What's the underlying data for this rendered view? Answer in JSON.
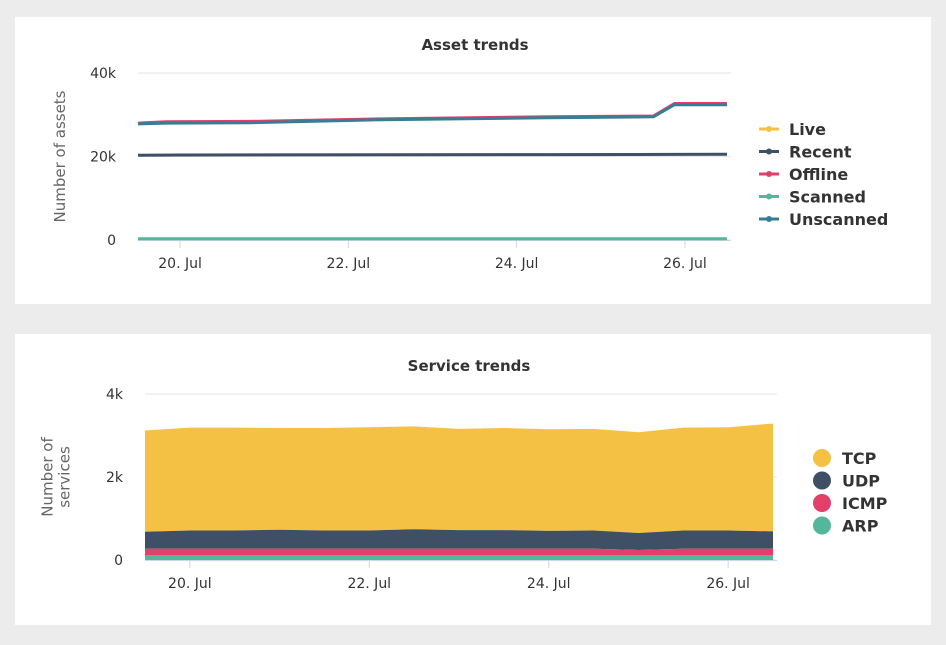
{
  "chart_data": [
    {
      "type": "line",
      "title": "Asset trends",
      "xlabel": "",
      "ylabel": "Number of assets",
      "ylim": [
        0,
        40000
      ],
      "yticks": [
        "0",
        "20k",
        "40k"
      ],
      "ytick_values": [
        0,
        20000,
        40000
      ],
      "xlim": [
        "2023-07-19T12:00",
        "2023-07-26T12:00"
      ],
      "xticks": [
        "20. Jul",
        "22. Jul",
        "24. Jul",
        "26. Jul"
      ],
      "xtick_dates": [
        "2023-07-20",
        "2023-07-22",
        "2023-07-24",
        "2023-07-26"
      ],
      "grid": "horizontal",
      "legend_position": "right",
      "series": [
        {
          "name": "Live",
          "color": "#f4c145",
          "x": [
            "2023-07-19T12:00",
            "2023-07-26T12:00"
          ],
          "y": [
            null,
            null
          ]
        },
        {
          "name": "Recent",
          "color": "#3f4f65",
          "x": [
            "2023-07-19T12:00",
            "2023-07-20T00:00",
            "2023-07-22T09:00",
            "2023-07-24T09:00",
            "2023-07-25T21:00",
            "2023-07-26T12:00"
          ],
          "y": [
            20300,
            20350,
            20400,
            20450,
            20500,
            20550
          ]
        },
        {
          "name": "Offline",
          "color": "#e23f6b",
          "x": [
            "2023-07-19T12:00",
            "2023-07-19T20:00",
            "2023-07-20T20:00",
            "2023-07-22T09:00",
            "2023-07-24T09:00",
            "2023-07-25T15:00",
            "2023-07-25T21:00",
            "2023-07-26T12:00"
          ],
          "y": [
            28000,
            28300,
            28400,
            29000,
            29500,
            29700,
            32700,
            32700
          ]
        },
        {
          "name": "Scanned",
          "color": "#52b79b",
          "x": [
            "2023-07-19T12:00",
            "2023-07-26T12:00"
          ],
          "y": [
            300,
            300
          ]
        },
        {
          "name": "Unscanned",
          "color": "#377e94",
          "x": [
            "2023-07-19T12:00",
            "2023-07-19T20:00",
            "2023-07-20T20:00",
            "2023-07-22T09:00",
            "2023-07-24T09:00",
            "2023-07-25T15:00",
            "2023-07-25T21:00",
            "2023-07-26T12:00"
          ],
          "y": [
            27800,
            28000,
            28100,
            28800,
            29300,
            29500,
            32400,
            32400
          ]
        }
      ]
    },
    {
      "type": "area",
      "stacked": true,
      "title": "Service trends",
      "xlabel": "",
      "ylabel": "Number of services",
      "ylim": [
        0,
        4000
      ],
      "yticks": [
        "0",
        "2k",
        "4k"
      ],
      "ytick_values": [
        0,
        2000,
        4000
      ],
      "xlim": [
        "2023-07-19T12:00",
        "2023-07-26T12:00"
      ],
      "xticks": [
        "20. Jul",
        "22. Jul",
        "24. Jul",
        "26. Jul"
      ],
      "xtick_dates": [
        "2023-07-20",
        "2023-07-22",
        "2023-07-24",
        "2023-07-26"
      ],
      "grid": "horizontal",
      "legend_position": "right",
      "x": [
        "2023-07-19T12:00",
        "2023-07-20T00:00",
        "2023-07-20T12:00",
        "2023-07-21T00:00",
        "2023-07-21T12:00",
        "2023-07-22T00:00",
        "2023-07-22T12:00",
        "2023-07-23T00:00",
        "2023-07-23T12:00",
        "2023-07-24T00:00",
        "2023-07-24T12:00",
        "2023-07-25T00:00",
        "2023-07-25T12:00",
        "2023-07-26T00:00",
        "2023-07-26T12:00"
      ],
      "series": [
        {
          "name": "ARP",
          "color": "#52b79b",
          "values": [
            120,
            120,
            120,
            120,
            120,
            120,
            120,
            120,
            120,
            120,
            120,
            120,
            120,
            120,
            120
          ]
        },
        {
          "name": "ICMP",
          "color": "#e23f6b",
          "values": [
            150,
            150,
            150,
            150,
            150,
            150,
            150,
            150,
            150,
            150,
            150,
            120,
            150,
            150,
            150
          ]
        },
        {
          "name": "UDP",
          "color": "#3f4f65",
          "values": [
            410,
            440,
            440,
            460,
            440,
            440,
            470,
            450,
            450,
            430,
            440,
            410,
            440,
            440,
            420
          ]
        },
        {
          "name": "TCP",
          "color": "#f4c145",
          "values": [
            2440,
            2480,
            2480,
            2450,
            2470,
            2490,
            2480,
            2440,
            2460,
            2450,
            2450,
            2430,
            2480,
            2490,
            2600
          ]
        }
      ]
    }
  ]
}
